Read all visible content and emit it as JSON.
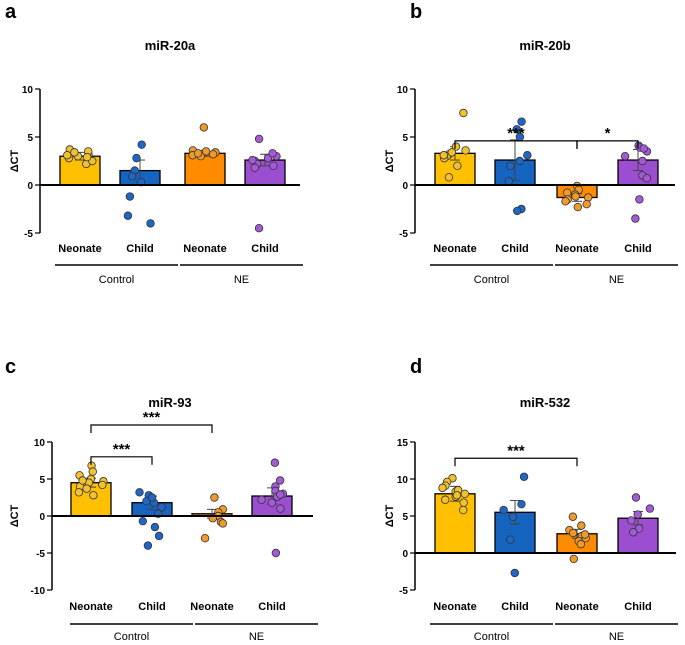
{
  "colors": {
    "neonate_control": "#FFC000",
    "child_control": "#1565C0",
    "neonate_ne": "#FF8C00",
    "child_ne": "#9B4FD0",
    "point_neonate_control": "#F2C12E",
    "point_child_control": "#1F66C6",
    "point_neonate_ne": "#F09A2A",
    "point_child_ne": "#A35AD6",
    "axis": "#000000"
  },
  "chart_data": [
    {
      "panel": "a",
      "type": "bar",
      "title": "miR-20a",
      "ylabel": "ΔCT",
      "ylim": [
        -5,
        10
      ],
      "yticks": [
        -5,
        0,
        5,
        10
      ],
      "categories": [
        "Neonate",
        "Child",
        "Neonate",
        "Child"
      ],
      "groups": [
        "Control",
        "NE"
      ],
      "values": [
        3.0,
        1.5,
        3.3,
        2.6
      ],
      "errors": [
        0.4,
        1.1,
        0.3,
        0.6
      ],
      "points": [
        [
          2.2,
          2.8,
          3.0,
          3.2,
          3.3,
          3.5,
          3.7,
          2.5,
          3.4,
          2.9,
          3.1
        ],
        [
          4.2,
          2.8,
          1.5,
          0.3,
          -1.2,
          -3.2,
          -4.0,
          0.9
        ],
        [
          6.0,
          3.0,
          3.4,
          3.6,
          3.2,
          3.1,
          3.5,
          3.3
        ],
        [
          4.8,
          3.0,
          2.8,
          2.5,
          2.2,
          2.0,
          3.3,
          2.6,
          1.8,
          -4.5
        ]
      ],
      "significance": []
    },
    {
      "panel": "b",
      "type": "bar",
      "title": "miR-20b",
      "ylabel": "ΔCT",
      "ylim": [
        -5,
        10
      ],
      "yticks": [
        -5,
        0,
        5,
        10
      ],
      "categories": [
        "Neonate",
        "Child",
        "Neonate",
        "Child"
      ],
      "groups": [
        "Control",
        "NE"
      ],
      "values": [
        3.3,
        2.6,
        -1.3,
        2.6
      ],
      "errors": [
        0.7,
        2.1,
        0.4,
        1.1
      ],
      "points": [
        [
          7.5,
          4.0,
          3.6,
          3.2,
          3.0,
          2.8,
          3.4,
          3.1,
          2.0,
          0.8
        ],
        [
          6.6,
          5.8,
          5.0,
          3.1,
          2.5,
          0.4,
          -2.5,
          -2.7,
          2.0
        ],
        [
          -0.1,
          -0.5,
          -0.8,
          -1.0,
          -1.3,
          -1.5,
          -1.7,
          -2.0,
          -2.3,
          -1.2
        ],
        [
          4.1,
          3.9,
          3.5,
          3.0,
          2.5,
          1.0,
          0.7,
          -1.5,
          -3.5,
          3.8
        ]
      ],
      "significance": [
        {
          "from": 0,
          "to": 2,
          "label": "***",
          "level": 4.6
        },
        {
          "from": 2,
          "to": 3,
          "label": "*",
          "level": 4.6
        }
      ]
    },
    {
      "panel": "c",
      "type": "bar",
      "title": "miR-93",
      "ylabel": "ΔCT",
      "ylim": [
        -10,
        10
      ],
      "yticks": [
        -10,
        -5,
        0,
        5,
        10
      ],
      "categories": [
        "Neonate",
        "Child",
        "Neonate",
        "Child"
      ],
      "groups": [
        "Control",
        "NE"
      ],
      "values": [
        4.5,
        1.8,
        0.3,
        2.7
      ],
      "errors": [
        0.6,
        0.9,
        0.6,
        1.1
      ],
      "points": [
        [
          6.8,
          6.0,
          5.5,
          5.0,
          4.7,
          4.5,
          4.2,
          4.0,
          3.7,
          3.2,
          2.8,
          4.8
        ],
        [
          3.2,
          2.8,
          2.0,
          1.8,
          1.2,
          0.3,
          -0.7,
          -1.5,
          -2.7,
          -4.0,
          2.5
        ],
        [
          2.5,
          0.9,
          0.5,
          0.0,
          -0.3,
          -0.8,
          -1.0,
          -3.0
        ],
        [
          7.2,
          4.8,
          4.0,
          3.4,
          3.0,
          2.6,
          2.2,
          1.8,
          1.0,
          -5.0,
          2.9
        ]
      ],
      "significance": [
        {
          "from": 0,
          "to": 1,
          "label": "***",
          "level": 8.0
        },
        {
          "from": 0,
          "to": 2,
          "label": "***",
          "level": 12.3
        }
      ]
    },
    {
      "panel": "d",
      "type": "bar",
      "title": "miR-532",
      "ylabel": "ΔCT",
      "ylim": [
        -5,
        15
      ],
      "yticks": [
        -5,
        0,
        5,
        10,
        15
      ],
      "categories": [
        "Neonate",
        "Child",
        "Neonate",
        "Child"
      ],
      "groups": [
        "Control",
        "NE"
      ],
      "values": [
        8.0,
        5.5,
        2.6,
        4.7
      ],
      "errors": [
        1.0,
        1.6,
        0.6,
        0.9
      ],
      "points": [
        [
          10.1,
          9.6,
          9.1,
          8.8,
          8.3,
          8.0,
          7.6,
          7.2,
          6.8,
          5.8,
          8.5,
          7.8
        ],
        [
          10.3,
          6.6,
          5.8,
          4.9,
          1.8,
          -2.7
        ],
        [
          4.9,
          3.7,
          3.1,
          2.7,
          2.3,
          2.0,
          1.6,
          1.2,
          -0.8,
          2.5
        ],
        [
          7.5,
          6.0,
          5.2,
          4.4,
          3.3,
          2.8
        ]
      ],
      "significance": [
        {
          "from": 0,
          "to": 2,
          "label": "***",
          "level": 12.8
        }
      ]
    }
  ]
}
